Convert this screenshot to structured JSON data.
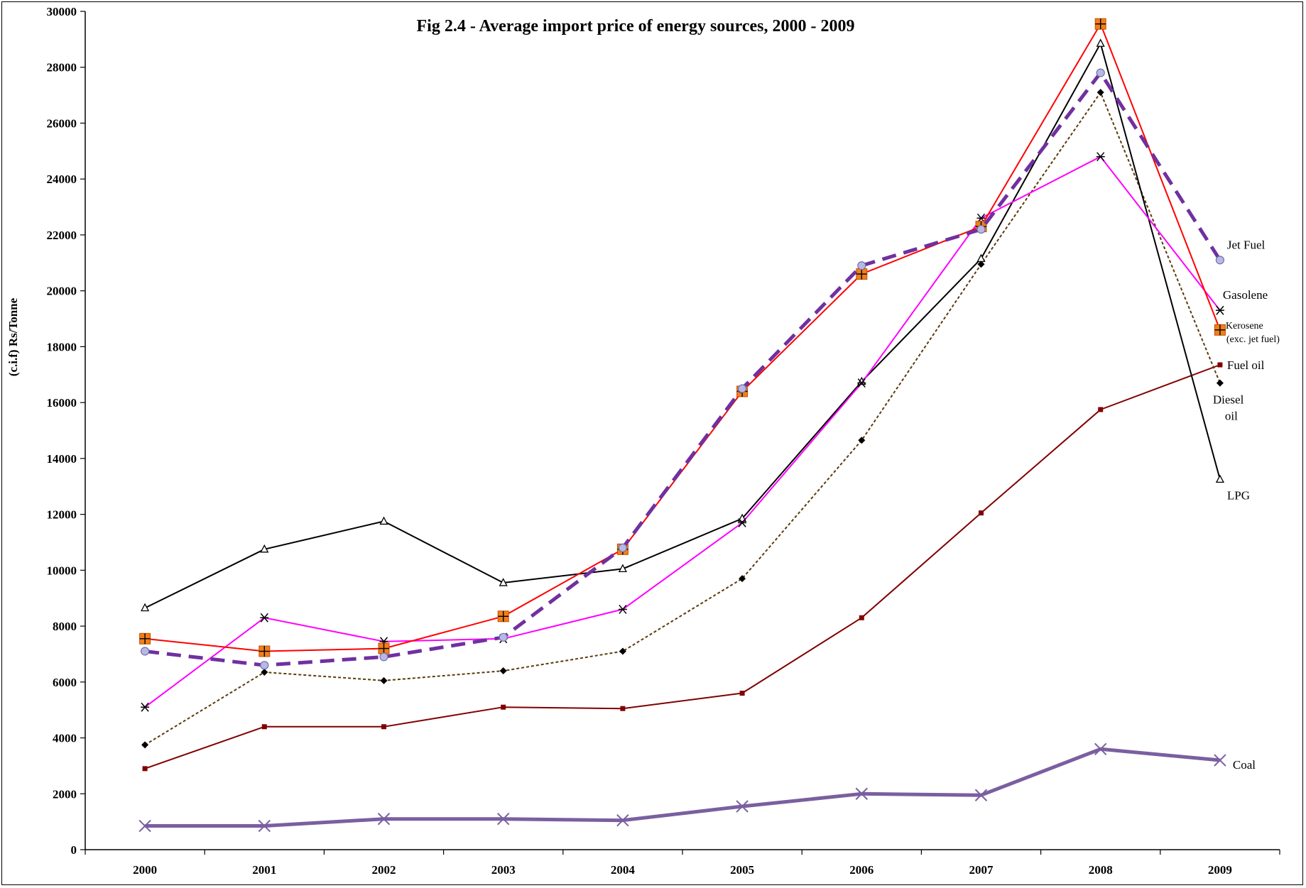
{
  "chart_data": {
    "type": "line",
    "title": "Fig 2.4 - Average import price of energy sources, 2000 - 2009",
    "xlabel": "",
    "ylabel": "(c.i.f) Rs/Tonne",
    "x": [
      "2000",
      "2001",
      "2002",
      "2003",
      "2004",
      "2005",
      "2006",
      "2007",
      "2008",
      "2009"
    ],
    "ylim": [
      0,
      30000
    ],
    "yticks": [
      0,
      2000,
      4000,
      6000,
      8000,
      10000,
      12000,
      14000,
      16000,
      18000,
      20000,
      22000,
      24000,
      26000,
      28000,
      30000
    ],
    "grid": false,
    "legend": "inline labels at right end of lines",
    "series": [
      {
        "name": "Jet Fuel",
        "values": [
          7100,
          6600,
          6900,
          7600,
          10800,
          16500,
          20900,
          22200,
          27800,
          21100
        ],
        "color": "#7030A0",
        "marker": "circle",
        "line": "dashed"
      },
      {
        "name": "Gasolene",
        "values": [
          5100,
          8300,
          7450,
          7550,
          8600,
          11700,
          16700,
          22600,
          24800,
          19300
        ],
        "color": "#FF00FF",
        "marker": "asterisk",
        "line": "solid"
      },
      {
        "name": "Kerosene (exc. jet fuel)",
        "name_line1": "Kerosene",
        "name_line2": "(exc. jet fuel)",
        "values": [
          7550,
          7100,
          7200,
          8350,
          10750,
          16400,
          20600,
          22300,
          29550,
          18600
        ],
        "color": "#FF0000",
        "marker": "square-plus",
        "line": "solid"
      },
      {
        "name": "Fuel oil",
        "values": [
          2900,
          4400,
          4400,
          5100,
          5050,
          5600,
          8300,
          12050,
          15750,
          17350
        ],
        "color": "#800000",
        "marker": "small-square",
        "line": "solid"
      },
      {
        "name": "Diesel oil",
        "name_line1": "Diesel",
        "name_line2": "oil",
        "values": [
          3750,
          6350,
          6050,
          6400,
          7100,
          9700,
          14650,
          20950,
          27100,
          16700
        ],
        "color": "#5C3A0A",
        "marker": "diamond",
        "line": "dotted"
      },
      {
        "name": "LPG",
        "values": [
          8650,
          10750,
          11750,
          9550,
          10050,
          11850,
          16750,
          21150,
          28850,
          13250
        ],
        "color": "#000000",
        "marker": "triangle",
        "line": "solid"
      },
      {
        "name": "Coal",
        "values": [
          850,
          850,
          1100,
          1100,
          1050,
          1550,
          2000,
          1950,
          3600,
          3200
        ],
        "color": "#7A5FA0",
        "marker": "x",
        "line": "thick"
      }
    ]
  }
}
